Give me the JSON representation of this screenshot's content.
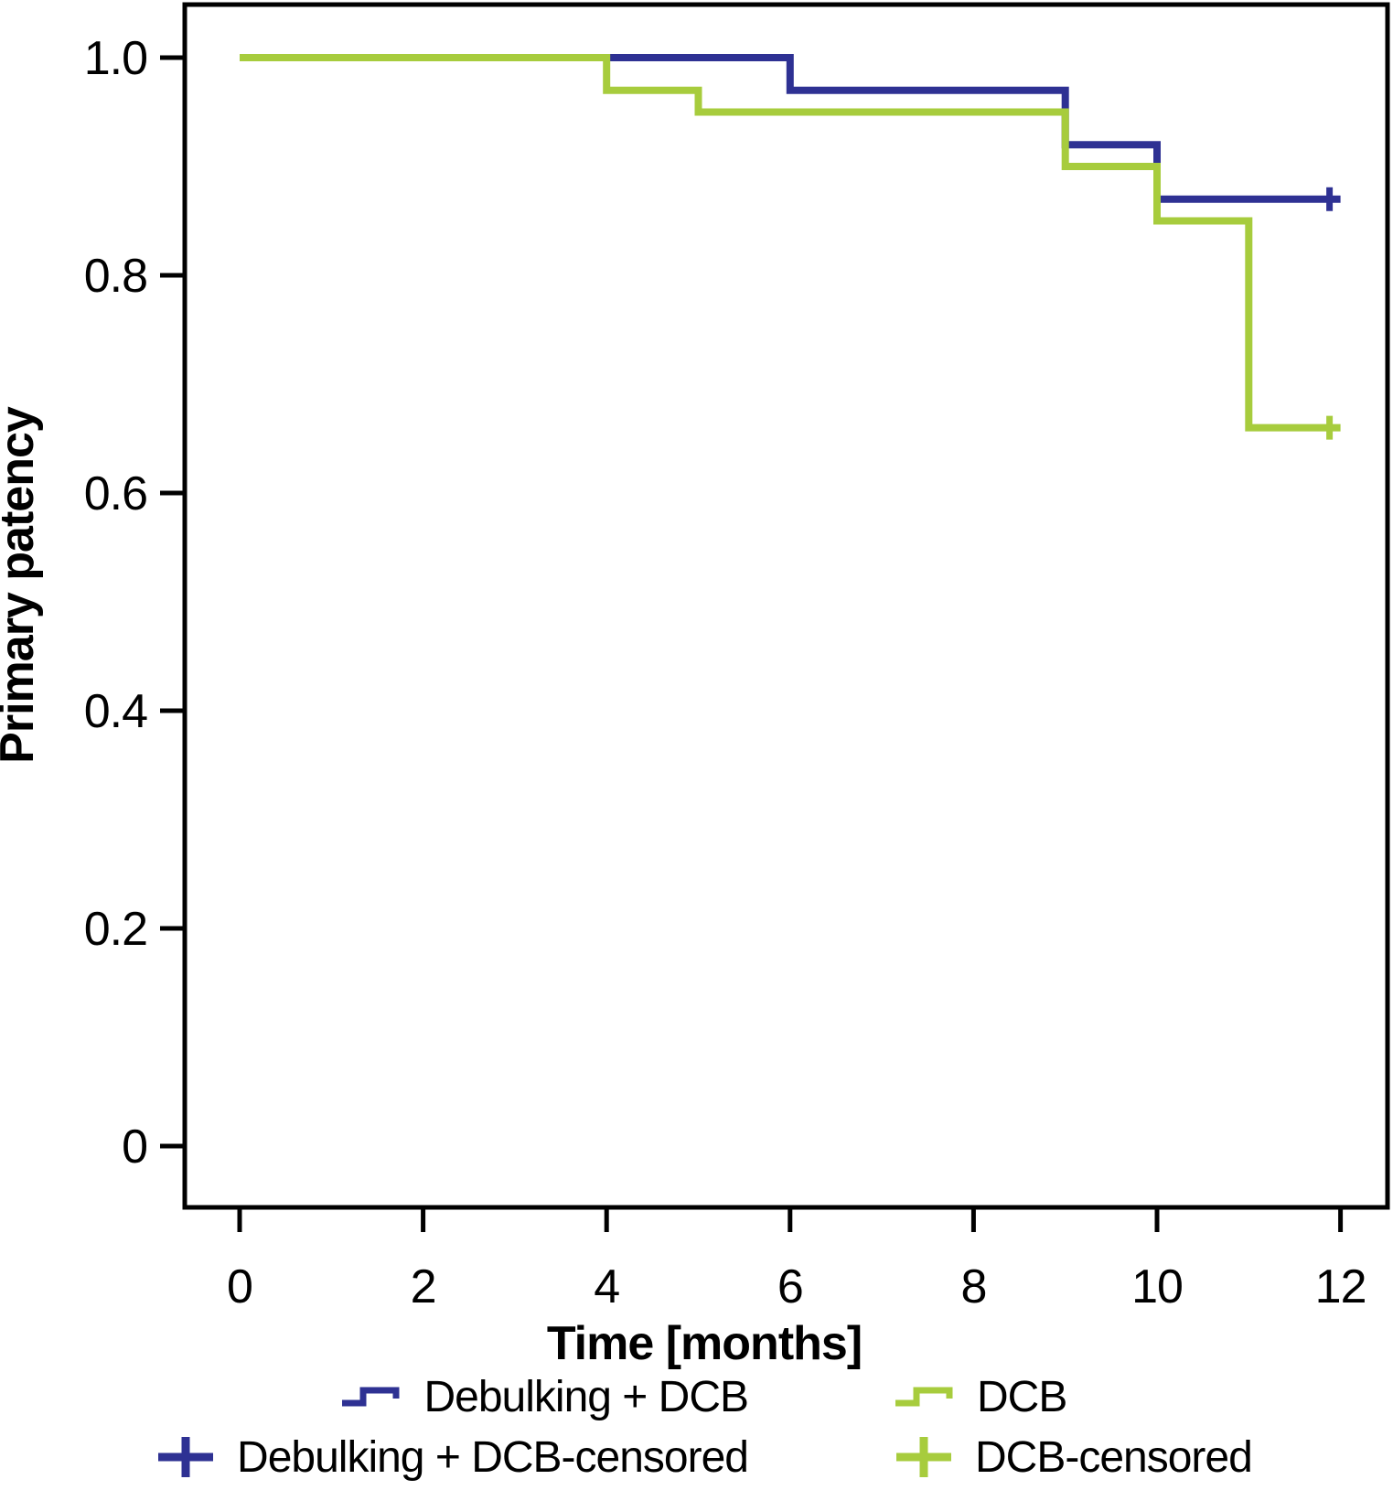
{
  "chart_data": {
    "type": "line",
    "subtype": "kaplan-meier-step",
    "title": "",
    "xlabel": "Time [months]",
    "ylabel": "Primary patency",
    "xlim": [
      0,
      12
    ],
    "ylim": [
      0,
      1.0
    ],
    "grid": "off",
    "legend_position": "bottom",
    "x_ticks": {
      "values": [
        0,
        2,
        4,
        6,
        8,
        10,
        12
      ],
      "labels": [
        "0",
        "2",
        "4",
        "6",
        "8",
        "10",
        "12"
      ]
    },
    "y_ticks": {
      "values": [
        1.0,
        0.8,
        0.6,
        0.4,
        0.2,
        0
      ],
      "labels": [
        "1.0",
        "0.8",
        "0.6",
        "0.4",
        "0.2",
        "0"
      ]
    },
    "series": [
      {
        "name": "Debulking + DCB",
        "slug": "debulking-dcb",
        "color": "#2e3193",
        "points": [
          [
            0,
            1.0
          ],
          [
            6,
            0.97
          ],
          [
            9,
            0.92
          ],
          [
            10,
            0.87
          ],
          [
            12,
            0.87
          ]
        ],
        "censored_at": [
          12
        ]
      },
      {
        "name": "DCB",
        "slug": "dcb",
        "color": "#a7cc3d",
        "points": [
          [
            0,
            1.0
          ],
          [
            4,
            0.97
          ],
          [
            5,
            0.95
          ],
          [
            9,
            0.9
          ],
          [
            10,
            0.85
          ],
          [
            11,
            0.66
          ],
          [
            12,
            0.66
          ]
        ],
        "censored_at": [
          12
        ]
      }
    ],
    "legend": [
      {
        "label": "Debulking + DCB",
        "marker": "step-line",
        "color": "#2e3193"
      },
      {
        "label": "DCB",
        "marker": "step-line",
        "color": "#a7cc3d"
      },
      {
        "label": "Debulking + DCB-censored",
        "marker": "plus",
        "color": "#2e3193"
      },
      {
        "label": "DCB-censored",
        "marker": "plus",
        "color": "#a7cc3d"
      }
    ],
    "axis_color": "#000000"
  }
}
